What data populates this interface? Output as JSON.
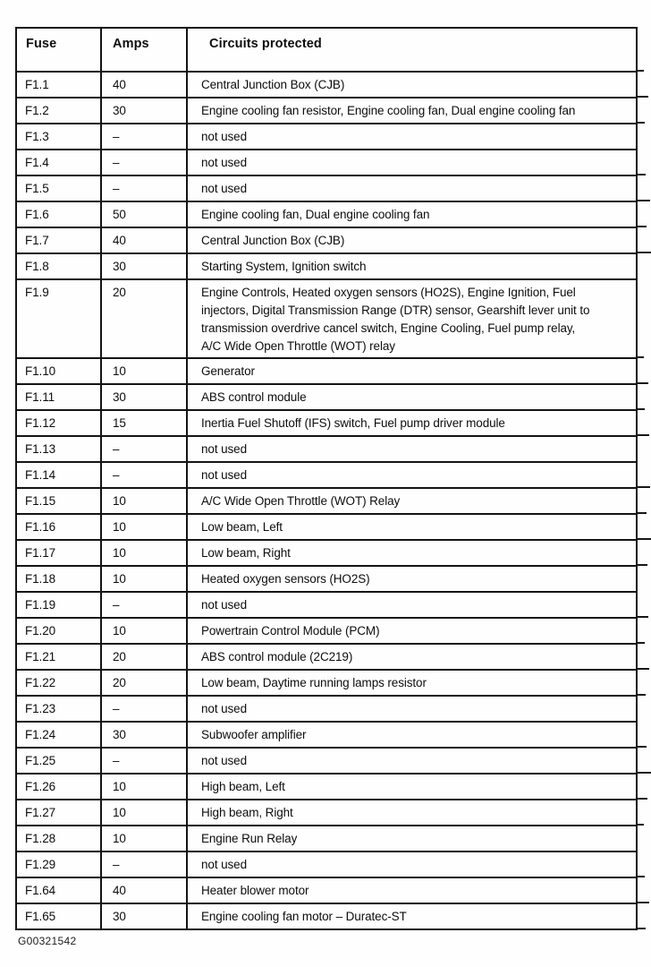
{
  "table": {
    "headers": [
      "Fuse",
      "Amps",
      "Circuits protected"
    ],
    "rows": [
      {
        "fuse": "F1.1",
        "amps": "40",
        "circuit": "Central Junction Box (CJB)"
      },
      {
        "fuse": "F1.2",
        "amps": "30",
        "circuit": "Engine cooling fan resistor, Engine cooling fan, Dual engine cooling fan"
      },
      {
        "fuse": "F1.3",
        "amps": "–",
        "circuit": "not used"
      },
      {
        "fuse": "F1.4",
        "amps": "–",
        "circuit": "not used"
      },
      {
        "fuse": "F1.5",
        "amps": "–",
        "circuit": "not used"
      },
      {
        "fuse": "F1.6",
        "amps": "50",
        "circuit": "Engine cooling fan, Dual engine cooling fan"
      },
      {
        "fuse": "F1.7",
        "amps": "40",
        "circuit": "Central Junction Box (CJB)"
      },
      {
        "fuse": "F1.8",
        "amps": "30",
        "circuit": "Starting System, Ignition switch"
      },
      {
        "fuse": "F1.9",
        "amps": "20",
        "circuit": "Engine Controls, Heated oxygen sensors (HO2S), Engine Ignition, Fuel\ninjectors, Digital Transmission Range (DTR) sensor, Gearshift lever unit to\ntransmission overdrive cancel switch, Engine Cooling, Fuel pump relay,\nA/C Wide Open Throttle (WOT) relay"
      },
      {
        "fuse": "F1.10",
        "amps": "10",
        "circuit": "Generator"
      },
      {
        "fuse": "F1.11",
        "amps": "30",
        "circuit": "ABS control module"
      },
      {
        "fuse": "F1.12",
        "amps": "15",
        "circuit": "Inertia Fuel Shutoff (IFS) switch, Fuel pump driver module"
      },
      {
        "fuse": "F1.13",
        "amps": "–",
        "circuit": "not used"
      },
      {
        "fuse": "F1.14",
        "amps": "–",
        "circuit": "not used"
      },
      {
        "fuse": "F1.15",
        "amps": "10",
        "circuit": "A/C Wide Open Throttle (WOT) Relay"
      },
      {
        "fuse": "F1.16",
        "amps": "10",
        "circuit": "Low beam, Left"
      },
      {
        "fuse": "F1.17",
        "amps": "10",
        "circuit": "Low beam, Right"
      },
      {
        "fuse": "F1.18",
        "amps": "10",
        "circuit": "Heated oxygen sensors (HO2S)"
      },
      {
        "fuse": "F1.19",
        "amps": "–",
        "circuit": "not used"
      },
      {
        "fuse": "F1.20",
        "amps": "10",
        "circuit": "Powertrain Control Module (PCM)"
      },
      {
        "fuse": "F1.21",
        "amps": "20",
        "circuit": "ABS control module (2C219)"
      },
      {
        "fuse": "F1.22",
        "amps": "20",
        "circuit": "Low beam, Daytime running lamps resistor"
      },
      {
        "fuse": "F1.23",
        "amps": "–",
        "circuit": "not used"
      },
      {
        "fuse": "F1.24",
        "amps": "30",
        "circuit": "Subwoofer amplifier"
      },
      {
        "fuse": "F1.25",
        "amps": "–",
        "circuit": "not used"
      },
      {
        "fuse": "F1.26",
        "amps": "10",
        "circuit": "High beam, Left"
      },
      {
        "fuse": "F1.27",
        "amps": "10",
        "circuit": "High beam, Right"
      },
      {
        "fuse": "F1.28",
        "amps": "10",
        "circuit": "Engine Run Relay"
      },
      {
        "fuse": "F1.29",
        "amps": "–",
        "circuit": "not used"
      },
      {
        "fuse": "F1.64",
        "amps": "40",
        "circuit": "Heater blower motor"
      },
      {
        "fuse": "F1.65",
        "amps": "30",
        "circuit": "Engine cooling fan motor – Duratec-ST"
      }
    ]
  },
  "caption": "G00321542"
}
